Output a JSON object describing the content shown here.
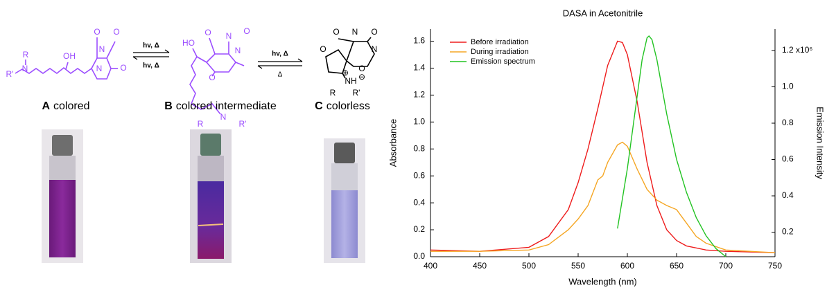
{
  "scheme": {
    "molecules": [
      {
        "letter": "A",
        "caption": "colored",
        "atoms": [
          "R",
          "N",
          "R'",
          "OH",
          "O",
          "N",
          "O",
          "N",
          "O"
        ]
      },
      {
        "letter": "B",
        "caption": "colored intermediate",
        "atoms": [
          "HO",
          "O",
          "N",
          "O",
          "N",
          "O",
          "R",
          "N",
          "R'"
        ]
      },
      {
        "letter": "C",
        "caption": "colorless",
        "atoms": [
          "O",
          "N",
          "O",
          "O",
          "N",
          "O",
          "⊖",
          "NH",
          "⊕",
          "R",
          "R'"
        ]
      }
    ],
    "arrows": [
      {
        "forward": "hv, Δ",
        "backward": "hv, Δ"
      },
      {
        "forward": "hv, Δ",
        "backward": "Δ"
      }
    ]
  },
  "chart_data": {
    "type": "line",
    "title": "DASA in Acetonitrile",
    "xlabel": "Wavelength (nm)",
    "ylabel": "Absorbance",
    "y2label": "Emission Intensity",
    "xlim": [
      400,
      750
    ],
    "xticks": [
      400,
      450,
      500,
      550,
      600,
      650,
      700,
      750
    ],
    "ylim": [
      0,
      1.69
    ],
    "yticks": [
      {
        "value": 0,
        "label": "0.0"
      },
      0.2,
      0.4,
      0.6,
      0.8,
      {
        "value": 1,
        "label": "1.0"
      },
      1.2,
      1.4,
      1.6
    ],
    "y2lim": [
      0.065,
      1.318
    ],
    "y2ticks": [
      0.2,
      0.4,
      0.6,
      0.8,
      {
        "value": 1,
        "label": "1.0"
      },
      {
        "value": 1.2,
        "label": "1.2 x10⁶"
      }
    ],
    "legend": "upper left",
    "series": [
      {
        "name": "Before irradiation",
        "color": "#ee1c1c",
        "x": [
          400,
          450,
          500,
          520,
          540,
          550,
          560,
          570,
          580,
          590,
          595,
          600,
          610,
          620,
          630,
          640,
          650,
          660,
          680,
          700,
          750
        ],
        "values": [
          0.05,
          0.04,
          0.07,
          0.15,
          0.35,
          0.55,
          0.8,
          1.1,
          1.42,
          1.6,
          1.59,
          1.5,
          1.15,
          0.7,
          0.38,
          0.2,
          0.12,
          0.08,
          0.05,
          0.04,
          0.03
        ]
      },
      {
        "name": "During irradiation",
        "color": "#f5a623",
        "x": [
          400,
          450,
          500,
          520,
          540,
          550,
          560,
          570,
          575,
          580,
          590,
          595,
          600,
          610,
          620,
          630,
          640,
          650,
          660,
          670,
          680,
          700,
          750
        ],
        "values": [
          0.04,
          0.04,
          0.05,
          0.09,
          0.2,
          0.28,
          0.38,
          0.57,
          0.6,
          0.7,
          0.83,
          0.85,
          0.82,
          0.65,
          0.5,
          0.42,
          0.38,
          0.35,
          0.25,
          0.15,
          0.1,
          0.05,
          0.03
        ]
      },
      {
        "name": "Emission spectrum",
        "color": "#22c322",
        "axis": "y2",
        "x": [
          590,
          600,
          610,
          615,
          620,
          622,
          625,
          630,
          640,
          650,
          660,
          670,
          680,
          690,
          700
        ],
        "values": [
          0.22,
          0.55,
          0.95,
          1.15,
          1.27,
          1.28,
          1.26,
          1.15,
          0.85,
          0.6,
          0.42,
          0.28,
          0.18,
          0.11,
          0.065
        ]
      }
    ]
  }
}
